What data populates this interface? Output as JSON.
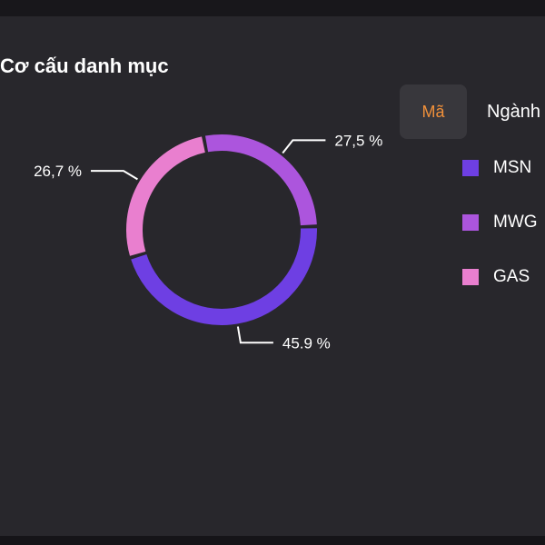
{
  "title": "Cơ cấu danh mục",
  "tabs": [
    {
      "label": "Mã",
      "active": true
    },
    {
      "label": "Ngành",
      "active": false
    }
  ],
  "accent_color": "#f0903a",
  "chart_data": {
    "type": "pie",
    "variant": "donut",
    "categories": [
      "MSN",
      "MWG",
      "GAS"
    ],
    "values": [
      45.9,
      27.5,
      26.7
    ],
    "data_labels": [
      "45.9 %",
      "27,5 %",
      "26,7 %"
    ],
    "colors": [
      "#6e3fe3",
      "#ac55dd",
      "#e97fcf"
    ],
    "legend_position": "right"
  }
}
